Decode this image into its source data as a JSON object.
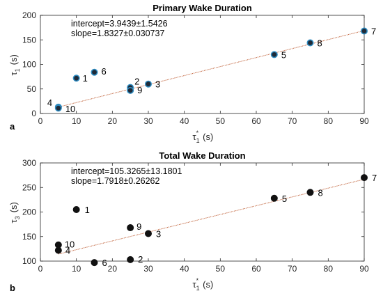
{
  "chart_data": [
    {
      "type": "scatter",
      "panel_label": "a",
      "title": "Primary Wake Duration",
      "xlabel": {
        "main": "τ",
        "sub": "1",
        "sup": "*",
        "unit": "(s)"
      },
      "ylabel": {
        "main": "τ",
        "sub": "1",
        "unit": "(s)"
      },
      "xlim": [
        0,
        90
      ],
      "ylim": [
        0,
        200
      ],
      "xticks": [
        "0",
        "10",
        "20",
        "30",
        "40",
        "50",
        "60",
        "70",
        "80",
        "90"
      ],
      "yticks": [
        "0",
        "50",
        "100",
        "150",
        "200"
      ],
      "annotation": [
        "intercept=3.9439±1.5426",
        "slope=1.8327±0.030737"
      ],
      "fit": {
        "intercept": 3.9439,
        "slope": 1.8327,
        "color": "#C0623A"
      },
      "marker_fill": "#1f2a38",
      "marker_edge": "#2E8BC0",
      "points": [
        {
          "label": "1",
          "x": 10,
          "y": 72
        },
        {
          "label": "2",
          "x": 25,
          "y": 53
        },
        {
          "label": "3",
          "x": 30,
          "y": 60
        },
        {
          "label": "4",
          "x": 5,
          "y": 13
        },
        {
          "label": "5",
          "x": 65,
          "y": 120
        },
        {
          "label": "6",
          "x": 15,
          "y": 84
        },
        {
          "label": "7",
          "x": 90,
          "y": 168
        },
        {
          "label": "8",
          "x": 75,
          "y": 144
        },
        {
          "label": "9",
          "x": 25,
          "y": 47
        },
        {
          "label": "10",
          "x": 5,
          "y": 11
        }
      ]
    },
    {
      "type": "scatter",
      "panel_label": "b",
      "title": "Total Wake Duration",
      "xlabel": {
        "main": "τ",
        "sub": "1",
        "sup": "*",
        "unit": "(s)"
      },
      "ylabel": {
        "main": "τ",
        "sub": "3",
        "unit": "(s)"
      },
      "xlim": [
        0,
        90
      ],
      "ylim": [
        100,
        300
      ],
      "xticks": [
        "0",
        "10",
        "20",
        "30",
        "40",
        "50",
        "60",
        "70",
        "80",
        "90"
      ],
      "yticks": [
        "100",
        "150",
        "200",
        "250",
        "300"
      ],
      "annotation": [
        "intercept=105.3265±13.1801",
        "slope=1.7918±0.26262"
      ],
      "fit": {
        "intercept": 105.3265,
        "slope": 1.7918,
        "color": "#C0623A"
      },
      "marker_fill": "#111111",
      "marker_edge": "#111111",
      "points": [
        {
          "label": "1",
          "x": 10,
          "y": 205
        },
        {
          "label": "2",
          "x": 25,
          "y": 103
        },
        {
          "label": "3",
          "x": 30,
          "y": 156
        },
        {
          "label": "4",
          "x": 5,
          "y": 122
        },
        {
          "label": "5",
          "x": 65,
          "y": 228
        },
        {
          "label": "6",
          "x": 15,
          "y": 97
        },
        {
          "label": "7",
          "x": 90,
          "y": 270
        },
        {
          "label": "8",
          "x": 75,
          "y": 240
        },
        {
          "label": "9",
          "x": 25,
          "y": 168
        },
        {
          "label": "10",
          "x": 5,
          "y": 133
        }
      ]
    }
  ]
}
